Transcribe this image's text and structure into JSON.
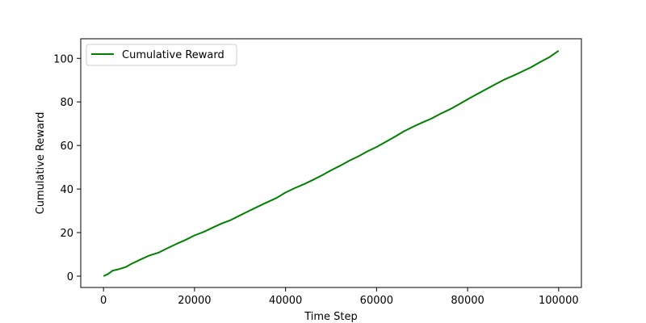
{
  "chart_data": {
    "type": "line",
    "title": "",
    "xlabel": "Time Step",
    "ylabel": "Cumulative Reward",
    "xlim": [
      -5000,
      105000
    ],
    "ylim": [
      -5.2,
      109
    ],
    "xticks": [
      0,
      20000,
      40000,
      60000,
      80000,
      100000
    ],
    "yticks": [
      0,
      20,
      40,
      60,
      80,
      100
    ],
    "grid": false,
    "legend": {
      "position": "top-left",
      "entries": [
        "Cumulative Reward"
      ]
    },
    "series": [
      {
        "name": "Cumulative Reward",
        "color": "#008000",
        "x": [
          0,
          1000,
          2000,
          3000,
          4000,
          5000,
          6000,
          8000,
          10000,
          12000,
          14000,
          16000,
          18000,
          20000,
          22000,
          24000,
          26000,
          28000,
          30000,
          32000,
          34000,
          36000,
          38000,
          40000,
          42000,
          44000,
          46000,
          48000,
          50000,
          52000,
          54000,
          56000,
          58000,
          60000,
          62000,
          64000,
          66000,
          68000,
          70000,
          72000,
          74000,
          76000,
          78000,
          80000,
          82000,
          84000,
          86000,
          88000,
          90000,
          92000,
          94000,
          96000,
          98000,
          100000
        ],
        "y": [
          0,
          1.0,
          2.5,
          3.0,
          3.6,
          4.3,
          5.5,
          7.5,
          9.4,
          10.7,
          12.8,
          14.8,
          16.6,
          18.7,
          20.3,
          22.3,
          24.2,
          25.8,
          27.9,
          30.0,
          32.0,
          34.0,
          35.9,
          38.4,
          40.4,
          42.2,
          44.2,
          46.3,
          48.6,
          50.7,
          53.0,
          55.0,
          57.3,
          59.3,
          61.6,
          64.0,
          66.5,
          68.6,
          70.5,
          72.3,
          74.5,
          76.5,
          78.8,
          81.2,
          83.5,
          85.7,
          88.0,
          90.2,
          92.0,
          94.0,
          96.0,
          98.4,
          100.6,
          103.5
        ]
      }
    ]
  }
}
